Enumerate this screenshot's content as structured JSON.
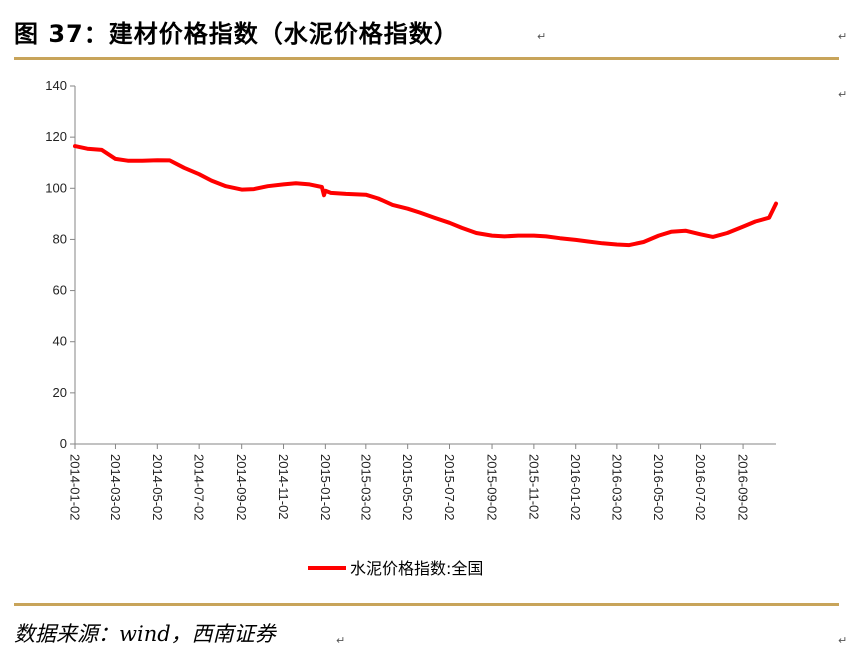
{
  "figure": {
    "title": "图 37：建材价格指数（水泥价格指数）",
    "source": "数据来源：wind，西南证券",
    "para_mark": "↵"
  },
  "chart_data": {
    "type": "line",
    "title": "",
    "xlabel": "",
    "ylabel": "",
    "ylim": [
      0,
      140
    ],
    "yticks": [
      0,
      20,
      40,
      60,
      80,
      100,
      120,
      140
    ],
    "xticks": [
      "2014-01-02",
      "2014-03-02",
      "2014-05-02",
      "2014-07-02",
      "2014-09-02",
      "2014-11-02",
      "2015-01-02",
      "2015-03-02",
      "2015-05-02",
      "2015-07-02",
      "2015-09-02",
      "2015-11-02",
      "2016-01-02",
      "2016-03-02",
      "2016-05-02",
      "2016-07-02",
      "2016-09-02"
    ],
    "grid": false,
    "legend_position": "bottom",
    "colors": {
      "series": "#ff0000",
      "axis": "#868686"
    },
    "series": [
      {
        "name": "水泥价格指数:全国",
        "x": [
          "2014-01-02",
          "2014-01-20",
          "2014-02-10",
          "2014-03-02",
          "2014-03-20",
          "2014-04-10",
          "2014-05-02",
          "2014-05-20",
          "2014-06-10",
          "2014-07-02",
          "2014-07-20",
          "2014-08-10",
          "2014-09-02",
          "2014-09-20",
          "2014-10-10",
          "2014-11-02",
          "2014-11-20",
          "2014-12-10",
          "2014-12-28",
          "2014-12-31",
          "2015-01-02",
          "2015-01-10",
          "2015-02-01",
          "2015-03-02",
          "2015-03-20",
          "2015-04-10",
          "2015-05-02",
          "2015-05-20",
          "2015-06-10",
          "2015-07-02",
          "2015-07-20",
          "2015-08-10",
          "2015-09-02",
          "2015-09-20",
          "2015-10-10",
          "2015-11-02",
          "2015-11-20",
          "2015-12-10",
          "2016-01-02",
          "2016-01-20",
          "2016-02-10",
          "2016-03-02",
          "2016-03-20",
          "2016-04-10",
          "2016-05-02",
          "2016-05-20",
          "2016-06-10",
          "2016-07-02",
          "2016-07-20",
          "2016-08-10",
          "2016-09-02",
          "2016-09-20",
          "2016-10-10",
          "2016-10-20"
        ],
        "y": [
          116.5,
          115.5,
          115,
          111.5,
          110.8,
          110.8,
          111,
          110.9,
          108,
          105.5,
          103,
          100.8,
          99.5,
          99.7,
          100.8,
          101.5,
          102,
          101.5,
          100.5,
          97.3,
          99,
          98.2,
          97.8,
          97.5,
          96,
          93.5,
          92,
          90.5,
          88.5,
          86.5,
          84.5,
          82.5,
          81.5,
          81.2,
          81.5,
          81.5,
          81.2,
          80.5,
          79.8,
          79.2,
          78.5,
          78,
          77.8,
          79,
          81.5,
          83,
          83.4,
          82,
          81,
          82.5,
          85,
          87,
          88.5,
          94
        ]
      }
    ]
  }
}
